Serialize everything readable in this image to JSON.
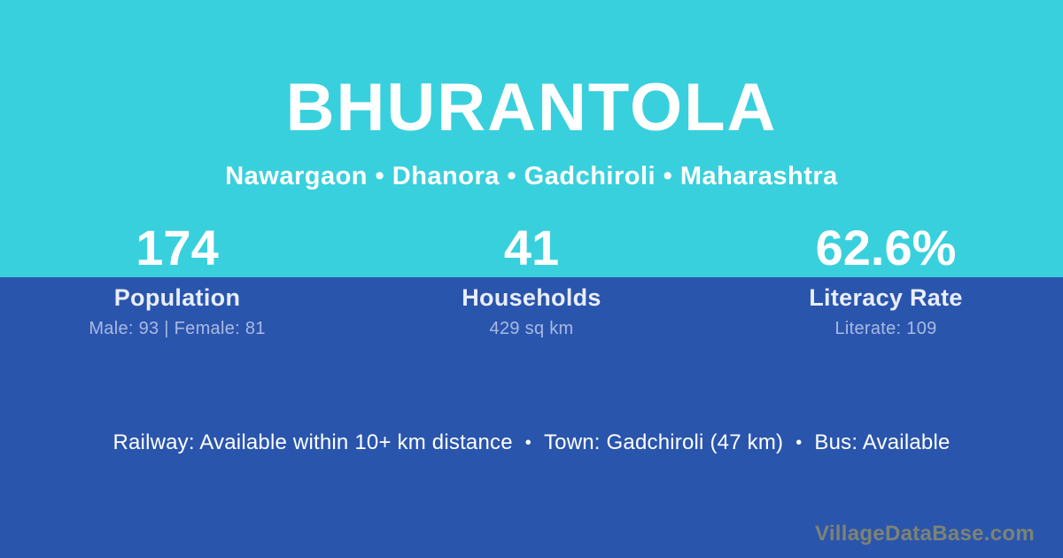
{
  "header": {
    "title": "BHURANTOLA",
    "location_line": "Nawargaon • Dhanora • Gadchiroli • Maharashtra"
  },
  "stats": [
    {
      "value": "174",
      "label": "Population",
      "sublabel": "Male: 93 | Female: 81"
    },
    {
      "value": "41",
      "label": "Households",
      "sublabel": "429 sq km"
    },
    {
      "value": "62.6%",
      "label": "Literacy Rate",
      "sublabel": "Literate: 109"
    }
  ],
  "footer": {
    "amenities": [
      "Railway: Available within 10+ km distance",
      "Town: Gadchiroli (47 km)",
      "Bus: Available"
    ],
    "separator": "•",
    "watermark": "VillageDataBase.com"
  },
  "colors": {
    "top_background": "#39d0dd",
    "bottom_background": "#2a55ad",
    "primary_text": "#ffffff",
    "label_text": "#e9eefb",
    "sublabel_text": "#a9bae2",
    "watermark_text": "#7d8374"
  }
}
